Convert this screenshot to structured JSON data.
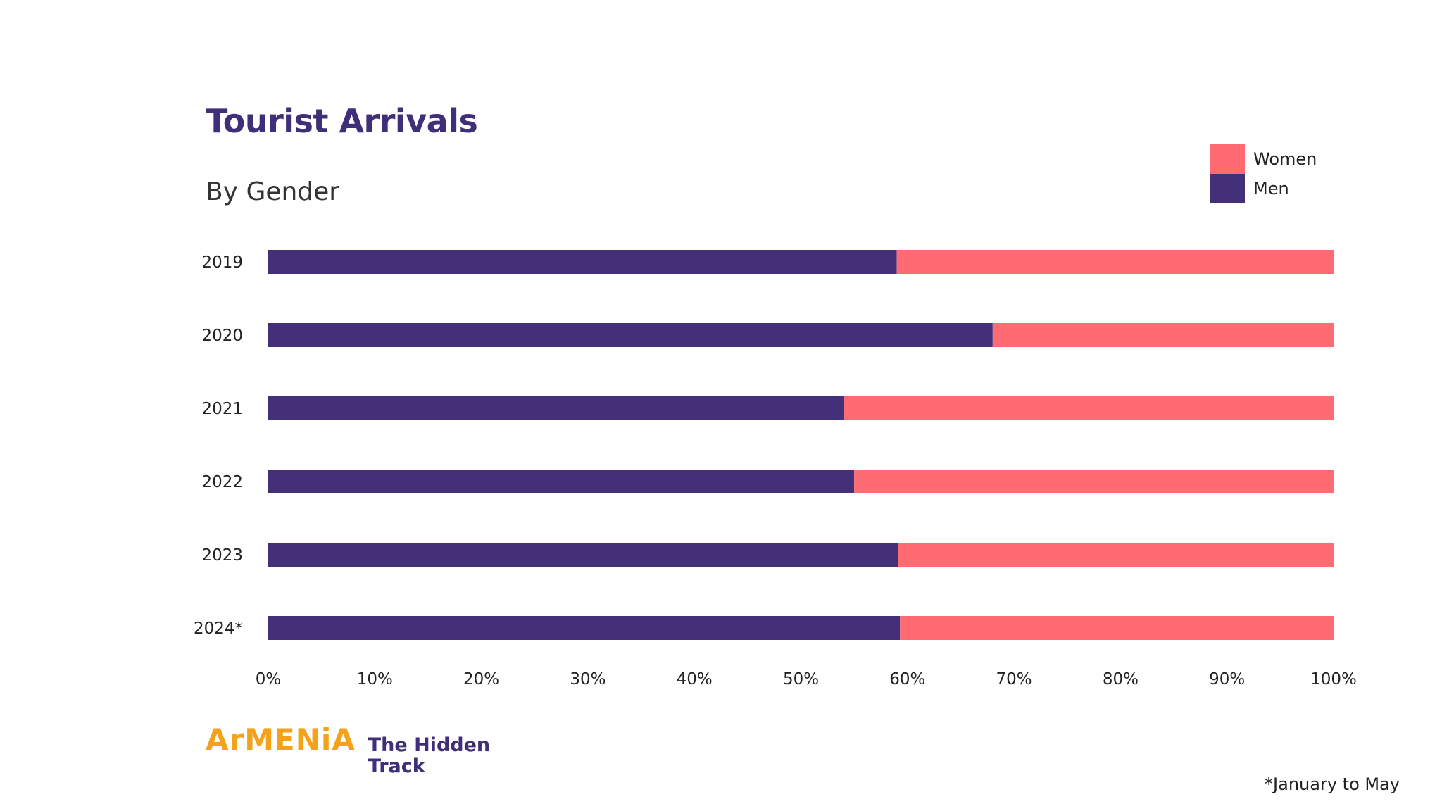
{
  "header": {
    "title": "Tourist Arrivals",
    "subtitle": "By Gender"
  },
  "legend": [
    {
      "label": "Women",
      "color": "#ff6b72"
    },
    {
      "label": "Men",
      "color": "#433079"
    }
  ],
  "footnote": "*January to May",
  "brand": {
    "name": "ArMENiA",
    "tagline": "The Hidden Track"
  },
  "chart_data": {
    "type": "bar",
    "orientation": "horizontal",
    "stacked": true,
    "title": "Tourist Arrivals",
    "subtitle": "By Gender",
    "categories": [
      "2019",
      "2020",
      "2021",
      "2022",
      "2023",
      "2024*"
    ],
    "series": [
      {
        "name": "Men",
        "color": "#433079",
        "values": [
          59,
          68,
          54,
          55,
          59.1,
          59.3
        ]
      },
      {
        "name": "Women",
        "color": "#ff6b72",
        "values": [
          41,
          32,
          46,
          45,
          40.9,
          40.7
        ]
      }
    ],
    "xlim": [
      0,
      100
    ],
    "xticks": [
      "0%",
      "10%",
      "20%",
      "30%",
      "40%",
      "50%",
      "60%",
      "70%",
      "80%",
      "90%",
      "100%"
    ],
    "grid": false,
    "legend_position": "top-right"
  }
}
